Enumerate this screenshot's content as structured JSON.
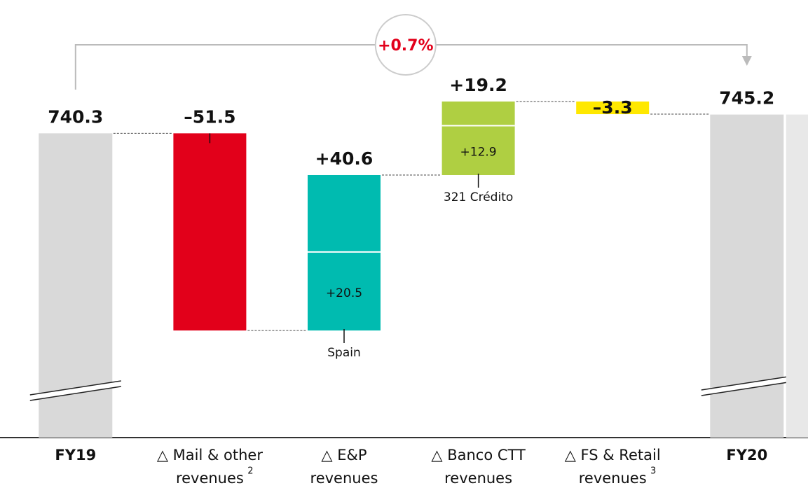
{
  "chart_data": {
    "type": "waterfall",
    "categories": [
      [
        "FY19"
      ],
      [
        "△ Mail & other",
        "revenues"
      ],
      [
        "△ E&P",
        "revenues"
      ],
      [
        "△ Banco CTT",
        "revenues"
      ],
      [
        "△ FS & Retail",
        "revenues"
      ],
      [
        "FY20"
      ]
    ],
    "footnotes": [
      null,
      "2",
      null,
      null,
      "3",
      null
    ],
    "values": [
      740.3,
      -51.5,
      40.6,
      19.2,
      -3.3,
      745.2
    ],
    "value_labels": [
      "740.3",
      "–51.5",
      "+40.6",
      "+19.2",
      "–3.3",
      "745.2"
    ],
    "totals": [
      true,
      false,
      false,
      false,
      false,
      true
    ],
    "colors": [
      "#d9d9d9",
      "#e2001a",
      "#00bbb0",
      "#afcf42",
      "#ffe800",
      "#d9d9d9"
    ],
    "subsegments": [
      null,
      null,
      {
        "label": "Spain",
        "value": 20.5,
        "value_label": "+20.5"
      },
      {
        "label": "321 Crédito",
        "value": 12.9,
        "value_label": "+12.9"
      },
      null,
      null
    ],
    "change": {
      "value": 0.7,
      "label": "+0.7%"
    }
  }
}
